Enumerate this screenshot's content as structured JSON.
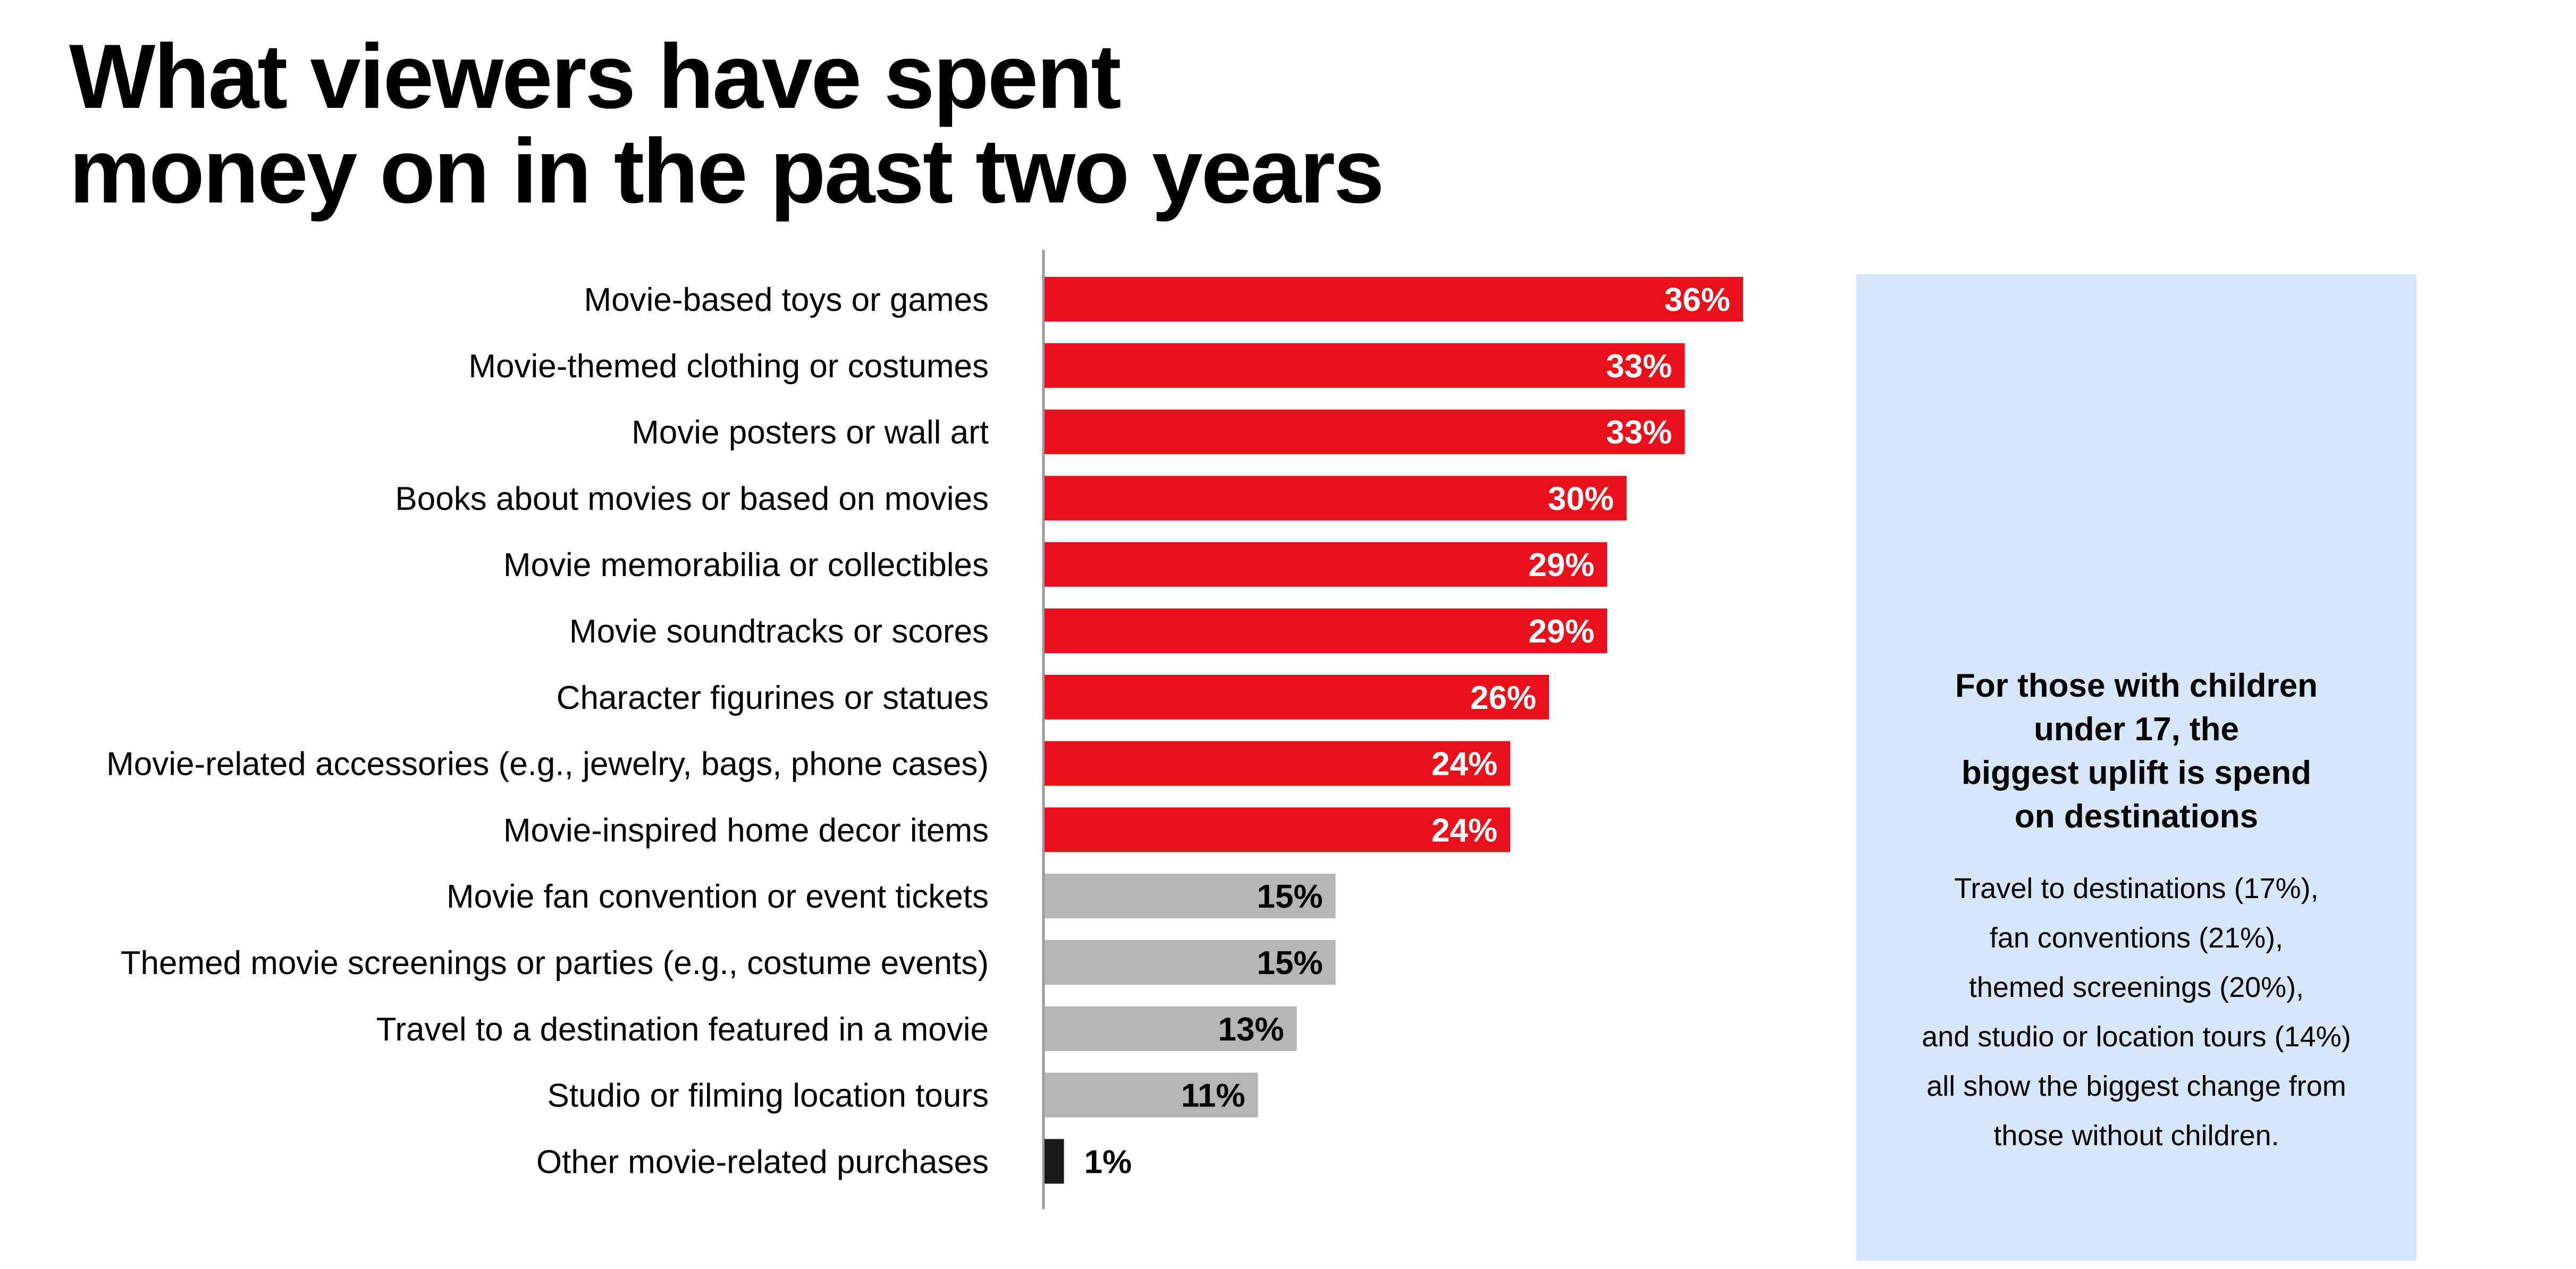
{
  "title_lines": [
    "What viewers have spent",
    "money on in the past two years"
  ],
  "colors": {
    "highlight": "#e8111b",
    "muted": "#b5b5b5",
    "other": "#1a1a1a",
    "callout_bg": "#d6e6f8",
    "axis": "#9a9a9a"
  },
  "chart_data": {
    "type": "bar",
    "orientation": "horizontal",
    "title": "What viewers have spent money on in the past two years",
    "xlabel": "",
    "ylabel": "",
    "xlim": [
      0,
      36
    ],
    "grid": false,
    "categories": [
      "Movie-based toys or games",
      "Movie-themed clothing or costumes",
      "Movie posters or wall art",
      "Books about movies or based on movies",
      "Movie memorabilia or collectibles",
      "Movie soundtracks or scores",
      "Character figurines or statues",
      "Movie-related accessories (e.g., jewelry, bags, phone cases)",
      "Movie-inspired home decor items",
      "Movie fan convention or event tickets",
      "Themed movie screenings or parties (e.g., costume events)",
      "Travel to a destination featured in a movie",
      "Studio or filming location tours",
      "Other movie-related purchases"
    ],
    "values": [
      36,
      33,
      33,
      30,
      29,
      29,
      26,
      24,
      24,
      15,
      15,
      13,
      11,
      1
    ],
    "labels": [
      "36%",
      "33%",
      "33%",
      "30%",
      "29%",
      "29%",
      "26%",
      "24%",
      "24%",
      "15%",
      "15%",
      "13%",
      "11%",
      "1%"
    ],
    "bar_groups": [
      "highlight",
      "highlight",
      "highlight",
      "highlight",
      "highlight",
      "highlight",
      "highlight",
      "highlight",
      "highlight",
      "muted",
      "muted",
      "muted",
      "muted",
      "other"
    ]
  },
  "callout": {
    "heading_lines": [
      "For those with children",
      "under 17, the",
      "biggest uplift is spend",
      "on destinations"
    ],
    "body_lines": [
      "Travel to destinations (17%),",
      "fan conventions (21%),",
      "themed screenings (20%),",
      "and studio or location tours (14%)",
      "all show the biggest change from",
      "those without children."
    ]
  }
}
